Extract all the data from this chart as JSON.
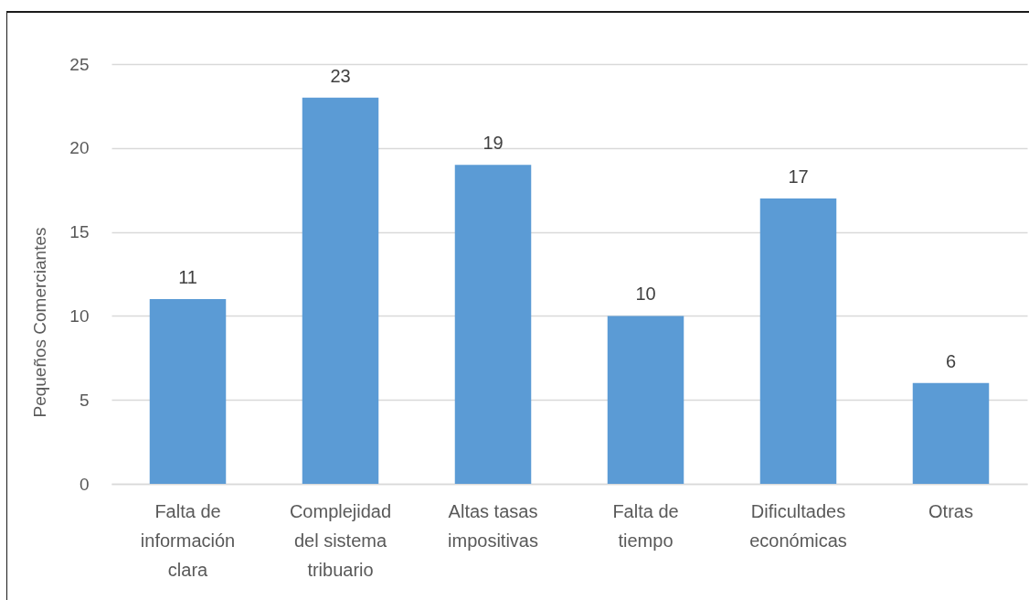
{
  "chart_data": {
    "type": "bar",
    "ylabel": "Pequeños Comerciantes",
    "categories": [
      "Falta de información clara",
      "Complejidad del sistema tribuario",
      "Altas tasas impositivas",
      "Falta de tiempo",
      "Dificultades económicas",
      "Otras"
    ],
    "values": [
      11,
      23,
      19,
      10,
      17,
      6
    ],
    "color": "#5b9bd5",
    "ylim": [
      0,
      25
    ],
    "yticks": [
      0,
      5,
      10,
      15,
      20,
      25
    ],
    "grid": "y",
    "data_labels": true
  }
}
